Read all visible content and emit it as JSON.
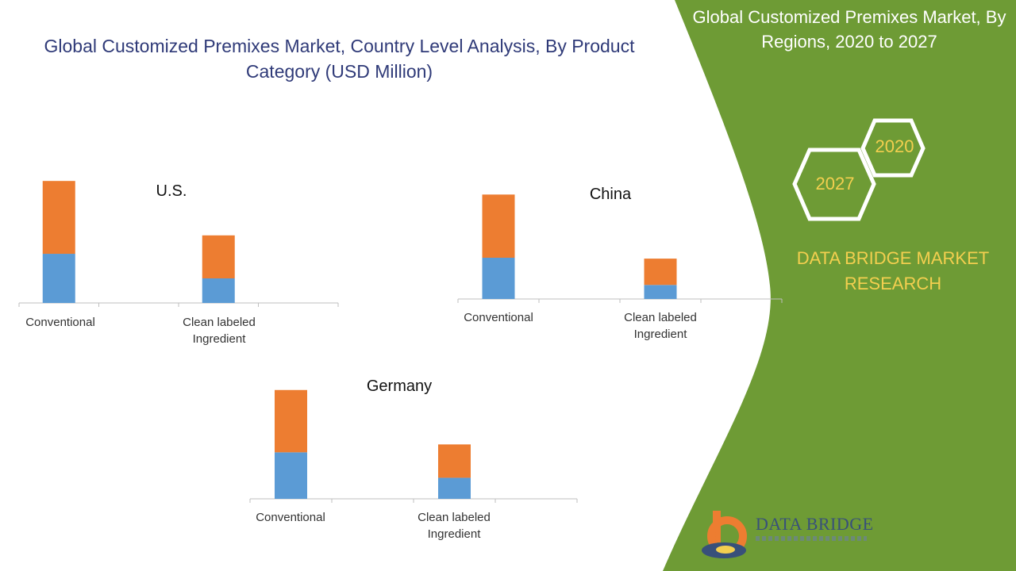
{
  "main_title": "Global Customized Premixes Market, Country Level Analysis, By Product Category (USD Million)",
  "panel_title": "Global Customized Premixes Market, By Regions, 2020 to 2027",
  "years": {
    "year_a": "2020",
    "year_b": "2027"
  },
  "brand": {
    "text": "DATA BRIDGE MARKET RESEARCH",
    "logo_name": "DATA BRIDGE"
  },
  "colors": {
    "panel_green": "#6e9b35",
    "series_blue": "#5b9bd5",
    "series_orange": "#ed7d31",
    "title_blue": "#2f3a78",
    "accent_yellow": "#f3cf4f"
  },
  "chart_data": [
    {
      "type": "bar",
      "stacked": true,
      "title": "U.S.",
      "categories": [
        "Conventional",
        "Clean labeled Ingredient"
      ],
      "series": [
        {
          "values": [
            56,
            28
          ],
          "color": "#5b9bd5"
        },
        {
          "values": [
            83,
            49
          ],
          "color": "#ed7d31"
        }
      ],
      "ylim": [
        0,
        150
      ]
    },
    {
      "type": "bar",
      "stacked": true,
      "title": "China",
      "categories": [
        "Conventional",
        "Clean labeled Ingredient"
      ],
      "series": [
        {
          "values": [
            47,
            16
          ],
          "color": "#5b9bd5"
        },
        {
          "values": [
            72,
            30
          ],
          "color": "#ed7d31"
        }
      ],
      "ylim": [
        0,
        150
      ]
    },
    {
      "type": "bar",
      "stacked": true,
      "title": "Germany",
      "categories": [
        "Conventional",
        "Clean labeled Ingredient"
      ],
      "series": [
        {
          "values": [
            53,
            24
          ],
          "color": "#5b9bd5"
        },
        {
          "values": [
            71,
            38
          ],
          "color": "#ed7d31"
        }
      ],
      "ylim": [
        0,
        150
      ]
    }
  ]
}
